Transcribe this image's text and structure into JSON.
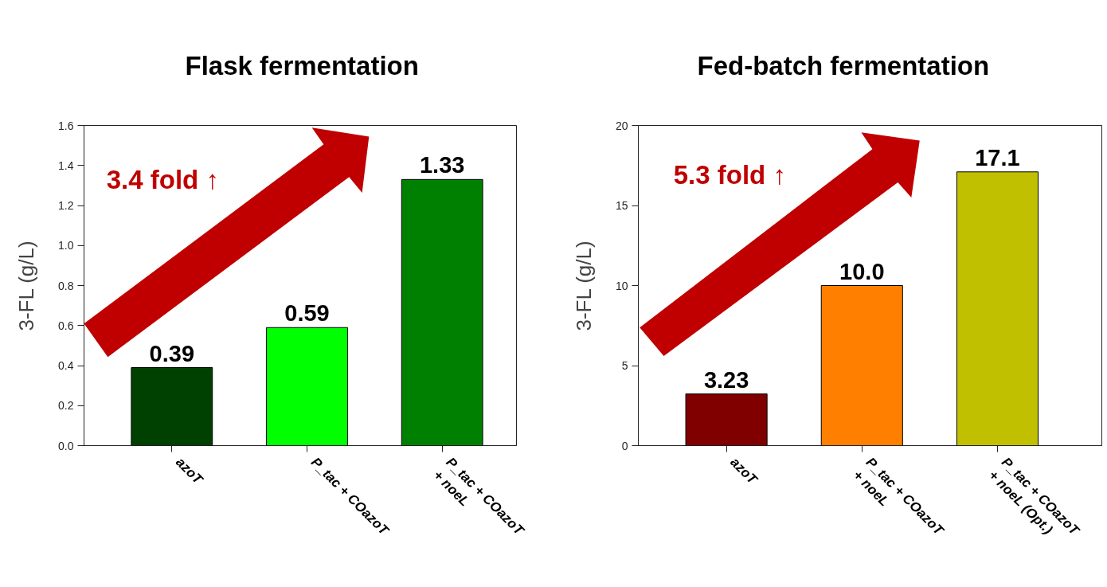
{
  "chart_data": [
    {
      "type": "bar",
      "title": "Flask fermentation",
      "ylabel": "3-FL (g/L)",
      "categories": [
        "azoT",
        "P_tac + COazoT",
        "P_tac + COazoT\n+ noeL"
      ],
      "values": [
        0.39,
        0.59,
        1.33
      ],
      "colors": [
        "#004000",
        "#00ff00",
        "#008000"
      ],
      "ylim": [
        0,
        1.6
      ],
      "yticks": [
        {
          "value": 0,
          "label": "0.0"
        },
        0.2,
        0.4,
        0.6,
        0.8,
        {
          "value": 1,
          "label": "1.0"
        },
        1.2,
        1.4,
        1.6
      ],
      "data_labels": true,
      "annotations": [
        "3.4 fold ↑"
      ]
    },
    {
      "type": "bar",
      "title": "Fed-batch fermentation",
      "ylabel": "3-FL (g/L)",
      "categories": [
        "azoT",
        "P_tac + COazoT\n+ noeL",
        "P_tac + COazoT\n+ noeL (Opt.)"
      ],
      "values": [
        3.23,
        10.0,
        17.1
      ],
      "value_labels": [
        "3.23",
        "10.0",
        "17.1"
      ],
      "colors": [
        "#800000",
        "#ff8000",
        "#c0c000"
      ],
      "ylim": [
        0,
        20
      ],
      "yticks": [
        0,
        5,
        10,
        15,
        20
      ],
      "annotations": [
        "5.3 fold ↑"
      ]
    }
  ]
}
